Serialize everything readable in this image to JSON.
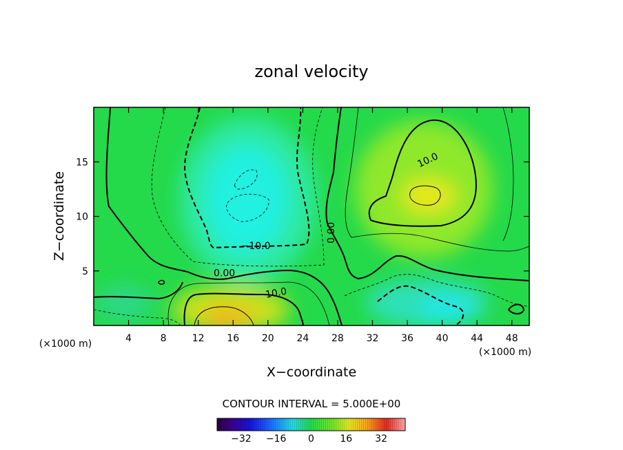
{
  "chart_data": {
    "type": "heatmap",
    "title": "zonal velocity",
    "xlabel": "X−coordinate",
    "ylabel": "Z−coordinate",
    "x_unit_left": "(×1000 m)",
    "x_unit_right": "(×1000 m)",
    "xlim": [
      0,
      50
    ],
    "ylim": [
      0,
      20
    ],
    "x_ticks": [
      4,
      8,
      12,
      16,
      20,
      24,
      28,
      32,
      36,
      40,
      44,
      48
    ],
    "y_ticks": [
      5,
      10,
      15
    ],
    "contour_interval_label": "CONTOUR INTERVAL = 5.000E+00",
    "contour_labels": [
      {
        "text": "10.0",
        "x": 38.5,
        "y": 14.9
      },
      {
        "text": "−10.0",
        "x": 18.6,
        "y": 7.0
      },
      {
        "text": "0.00",
        "x": 15.0,
        "y": 4.5
      },
      {
        "text": "10.0",
        "x": 21.0,
        "y": 2.7
      },
      {
        "text": "0.00",
        "x": 27.6,
        "y": 8.5
      }
    ],
    "colorbar": {
      "range": [
        -43,
        43
      ],
      "ticks": [
        -32,
        -16,
        0,
        16,
        32
      ]
    },
    "features": [
      {
        "name": "upper-negative-core",
        "x": 18.5,
        "z": 11.5,
        "value": -15
      },
      {
        "name": "upper-positive-core",
        "x": 38.0,
        "z": 12.0,
        "value": 15
      },
      {
        "name": "lower-positive-jet",
        "x": 17.5,
        "z": 1.2,
        "value": 20
      },
      {
        "name": "lower-negative-jet",
        "x": 39.0,
        "z": 1.5,
        "value": -12
      }
    ]
  }
}
